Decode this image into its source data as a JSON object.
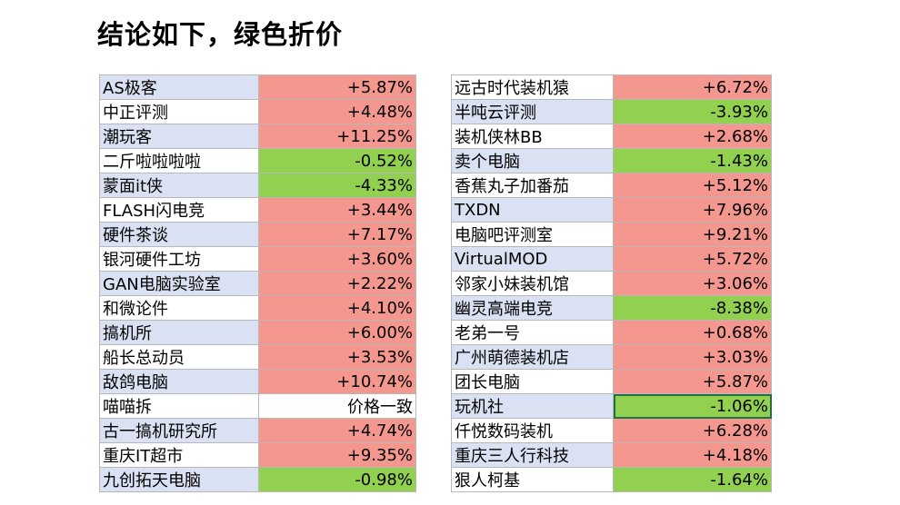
{
  "title": "结论如下，绿色折价",
  "colors": {
    "increase": "#f4978e",
    "decrease": "#92d050",
    "name_bg": "#d9e1f2"
  },
  "left_table": [
    {
      "name": "AS极客",
      "value": "+5.87%",
      "status": "red"
    },
    {
      "name": "中正评测",
      "value": "+4.48%",
      "status": "red"
    },
    {
      "name": "潮玩客",
      "value": "+11.25%",
      "status": "red"
    },
    {
      "name": "二斤啦啦啦啦",
      "value": "-0.52%",
      "status": "green"
    },
    {
      "name": "蒙面it侠",
      "value": "-4.33%",
      "status": "green"
    },
    {
      "name": "FLASH闪电竞",
      "value": "+3.44%",
      "status": "red"
    },
    {
      "name": "硬件茶谈",
      "value": "+7.17%",
      "status": "red"
    },
    {
      "name": "银河硬件工坊",
      "value": "+3.60%",
      "status": "red"
    },
    {
      "name": "GAN电脑实验室",
      "value": "+2.22%",
      "status": "red"
    },
    {
      "name": "和微论件",
      "value": "+4.10%",
      "status": "red"
    },
    {
      "name": "搞机所",
      "value": "+6.00%",
      "status": "red"
    },
    {
      "name": "船长总动员",
      "value": "+3.53%",
      "status": "red"
    },
    {
      "name": "敌鸽电脑",
      "value": "+10.74%",
      "status": "red"
    },
    {
      "name": "喵喵拆",
      "value": "价格一致",
      "status": "none"
    },
    {
      "name": "古一搞机研究所",
      "value": "+4.74%",
      "status": "red"
    },
    {
      "name": "重庆IT超市",
      "value": "+9.35%",
      "status": "red"
    },
    {
      "name": "九创拓天电脑",
      "value": "-0.98%",
      "status": "green"
    }
  ],
  "right_table": [
    {
      "name": "远古时代装机猿",
      "value": "+6.72%",
      "status": "red"
    },
    {
      "name": "半吨云评测",
      "value": "-3.93%",
      "status": "green"
    },
    {
      "name": "装机侠林BB",
      "value": "+2.68%",
      "status": "red"
    },
    {
      "name": "卖个电脑",
      "value": "-1.43%",
      "status": "green"
    },
    {
      "name": "香蕉丸子加番茄",
      "value": "+5.12%",
      "status": "red"
    },
    {
      "name": "TXDN",
      "value": "+7.96%",
      "status": "red"
    },
    {
      "name": "电脑吧评测室",
      "value": "+9.21%",
      "status": "red"
    },
    {
      "name": "VirtualMOD",
      "value": "+5.72%",
      "status": "red"
    },
    {
      "name": "邻家小妹装机馆",
      "value": "+3.06%",
      "status": "red"
    },
    {
      "name": "幽灵高端电竞",
      "value": "-8.38%",
      "status": "green"
    },
    {
      "name": "老弟一号",
      "value": "+0.68%",
      "status": "red"
    },
    {
      "name": "广州萌德装机店",
      "value": "+3.03%",
      "status": "red"
    },
    {
      "name": "团长电脑",
      "value": "+5.87%",
      "status": "red"
    },
    {
      "name": "玩机社",
      "value": "-1.06%",
      "status": "green"
    },
    {
      "name": "仟悦数码装机",
      "value": "+6.28%",
      "status": "red"
    },
    {
      "name": "重庆三人行科技",
      "value": "+4.18%",
      "status": "red"
    },
    {
      "name": "狠人柯基",
      "value": "-1.64%",
      "status": "green"
    }
  ]
}
